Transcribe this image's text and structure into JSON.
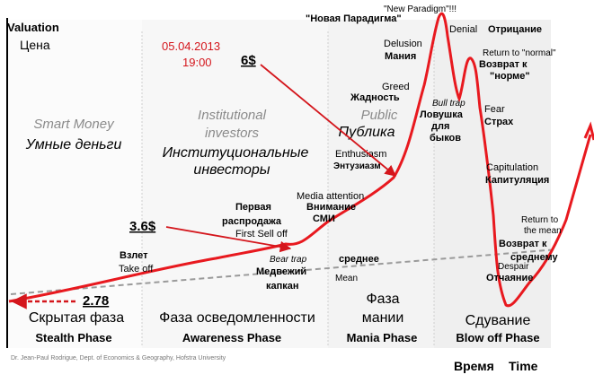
{
  "chart_data": {
    "type": "line",
    "axes": {
      "y_en": "Valuation",
      "y_ru": "Цена",
      "x_ru": "Время",
      "x_en": "Time"
    },
    "phases": [
      {
        "en": "Smart Money",
        "ru": "Умные деньги",
        "bottom_ru": "Скрытая фаза",
        "bottom_en": "Stealth Phase"
      },
      {
        "en1": "Institutional",
        "en2": "investors",
        "ru1": "Институциональные",
        "ru2": "инвесторы",
        "bottom_ru": "Фаза осведомленности",
        "bottom_en": "Awareness Phase"
      },
      {
        "en": "Public",
        "ru": "Публика",
        "bottom_ru1": "Фаза",
        "bottom_ru2": "мании",
        "bottom_en": "Mania Phase"
      },
      {
        "bottom_ru": "Сдувание",
        "bottom_en": "Blow off Phase"
      }
    ],
    "annotations": {
      "takeoff_ru": "Взлет",
      "takeoff_en": "Take off",
      "first_selloff_ru1": "Первая",
      "first_selloff_ru2": "распродажа",
      "first_selloff_en": "First Sell off",
      "beartrap_en": "Bear trap",
      "beartrap_ru1": "Медвежий",
      "beartrap_ru2": "капкан",
      "media_en": "Media attention",
      "media_ru1": "Внимание",
      "media_ru2": "СМИ",
      "enthusiasm_en": "Enthusiasm",
      "enthusiasm_ru": "Энтузиазм",
      "greed_en": "Greed",
      "greed_ru": "Жадность",
      "delusion_en": "Delusion",
      "delusion_ru": "Мания",
      "newparadigm_en": "\"New Paradigm\"!!!",
      "newparadigm_ru": "\"Новая Парадигма\"",
      "denial_en": "Denial",
      "denial_ru": "Отрицание",
      "return_normal_en": "Return to \"normal\"",
      "return_normal_ru1": "Возврат к",
      "return_normal_ru2": "\"норме\"",
      "bulltrap_en": "Bull trap",
      "bulltrap_ru1": "Ловушка",
      "bulltrap_ru2": "для",
      "bulltrap_ru3": "быков",
      "fear_en": "Fear",
      "fear_ru": "Страх",
      "capitulation_en": "Capitulation",
      "capitulation_ru": "Капитуляция",
      "return_mean_en1": "Return to",
      "return_mean_en2": "the mean",
      "return_mean_ru1": "Возврат к",
      "return_mean_ru2": "среднему",
      "despair_en": "Despair",
      "despair_ru": "Отчаяние",
      "mean_ru": "среднее",
      "mean_en": "Mean"
    },
    "overlay": {
      "date": "05.04.2013",
      "time": "19:00",
      "price_high": "6$",
      "price_mid": "3.6$",
      "price_low": "2.78"
    },
    "credit": "Dr. Jean-Paul Rodrigue, Dept. of Economics & Geography, Hofstra University",
    "colors": {
      "curve": "#e8191f",
      "overlay": "#d4161c",
      "mean": "#9a9a9a",
      "divider": "#c8c8c8",
      "faint": "#9a9a9a"
    },
    "grid": false
  }
}
